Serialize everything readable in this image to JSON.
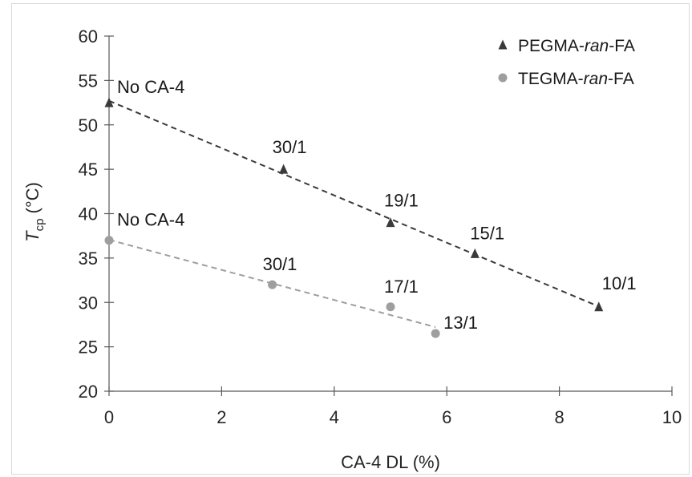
{
  "chart_data": {
    "type": "scatter",
    "xlabel": "CA-4 DL (%)",
    "ylabel": {
      "main": "T",
      "sub": "cp",
      "unit": " (°C)"
    },
    "xlim": [
      0,
      10
    ],
    "ylim": [
      20,
      60
    ],
    "x_ticks": [
      0,
      2,
      4,
      6,
      8,
      10
    ],
    "y_ticks": [
      20,
      25,
      30,
      35,
      40,
      45,
      50,
      55,
      60
    ],
    "grid": false,
    "legend_position": "top-right",
    "series": [
      {
        "name": [
          "PEGMA-",
          "ran",
          "-FA"
        ],
        "marker": "triangle",
        "color": "#3a3a3a",
        "trendline": "dashed",
        "points": [
          {
            "x": 0,
            "y": 52.5,
            "label": "No CA-4"
          },
          {
            "x": 3.1,
            "y": 45,
            "label": "30/1"
          },
          {
            "x": 5.0,
            "y": 39,
            "label": "19/1"
          },
          {
            "x": 6.5,
            "y": 35.5,
            "label": "15/1"
          },
          {
            "x": 8.7,
            "y": 29.5,
            "label": "10/1"
          }
        ]
      },
      {
        "name": [
          "TEGMA-",
          "ran",
          "-FA"
        ],
        "marker": "circle",
        "color": "#9e9e9e",
        "trendline": "dashed",
        "points": [
          {
            "x": 0,
            "y": 37,
            "label": "No CA-4"
          },
          {
            "x": 2.9,
            "y": 32,
            "label": "30/1"
          },
          {
            "x": 5.0,
            "y": 29.5,
            "label": "17/1"
          },
          {
            "x": 5.8,
            "y": 26.5,
            "label": "13/1"
          }
        ]
      }
    ]
  }
}
